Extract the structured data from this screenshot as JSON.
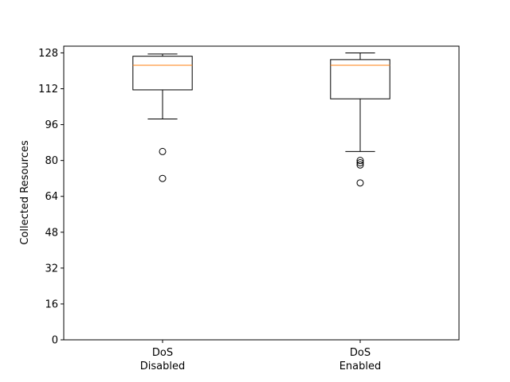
{
  "chart_data": {
    "type": "box",
    "title": "",
    "xlabel": "",
    "ylabel": "Collected Resources",
    "ylim": [
      0,
      131
    ],
    "yticks": [
      0,
      16,
      32,
      48,
      64,
      80,
      96,
      112,
      128
    ],
    "grid": false,
    "categories": [
      {
        "line1": "DoS",
        "line2": "Disabled"
      },
      {
        "line1": "DoS",
        "line2": "Enabled"
      }
    ],
    "boxes": [
      {
        "whisker_low": 98.5,
        "q1": 111.5,
        "median": 122.5,
        "q3": 126.5,
        "whisker_high": 127.5,
        "outliers": [
          84,
          72
        ]
      },
      {
        "whisker_low": 84,
        "q1": 107.5,
        "median": 122.5,
        "q3": 125,
        "whisker_high": 128,
        "outliers": [
          80,
          79,
          78,
          70
        ]
      }
    ],
    "colors": {
      "box": "#000000",
      "median": "#ff7f0e",
      "outlier": "#000000"
    }
  }
}
